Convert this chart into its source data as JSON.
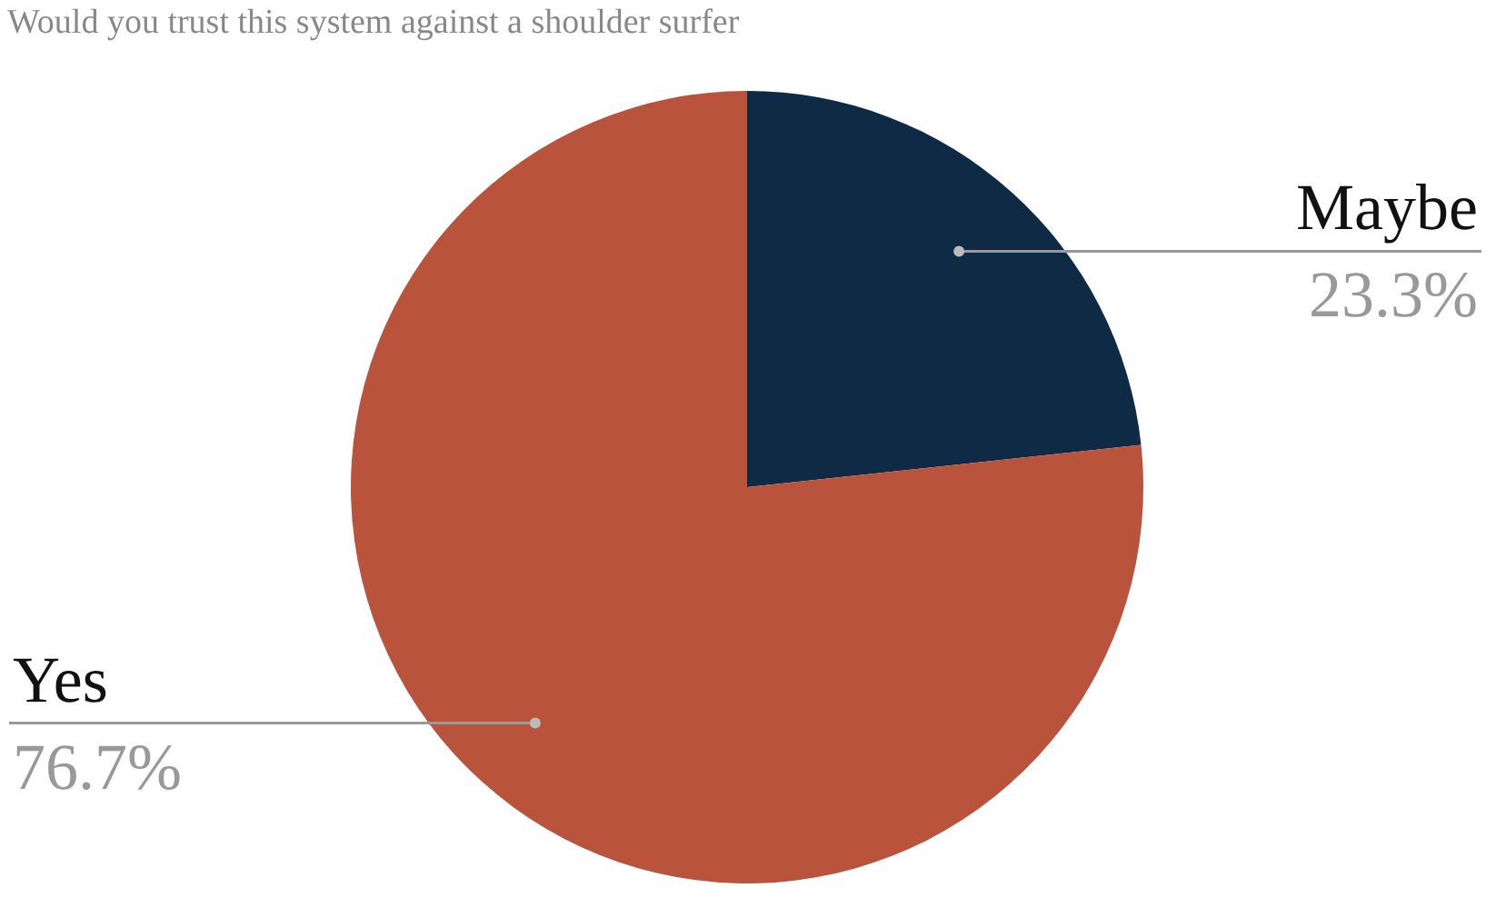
{
  "chart_data": {
    "type": "pie",
    "title": "Would you trust this system against a shoulder surfer",
    "categories": [
      "Maybe",
      "Yes"
    ],
    "values": [
      23.3,
      76.7
    ],
    "colors": [
      "#0f2a44",
      "#b9533b"
    ],
    "value_labels": [
      "23.3%",
      "76.7%"
    ],
    "legend": false
  }
}
